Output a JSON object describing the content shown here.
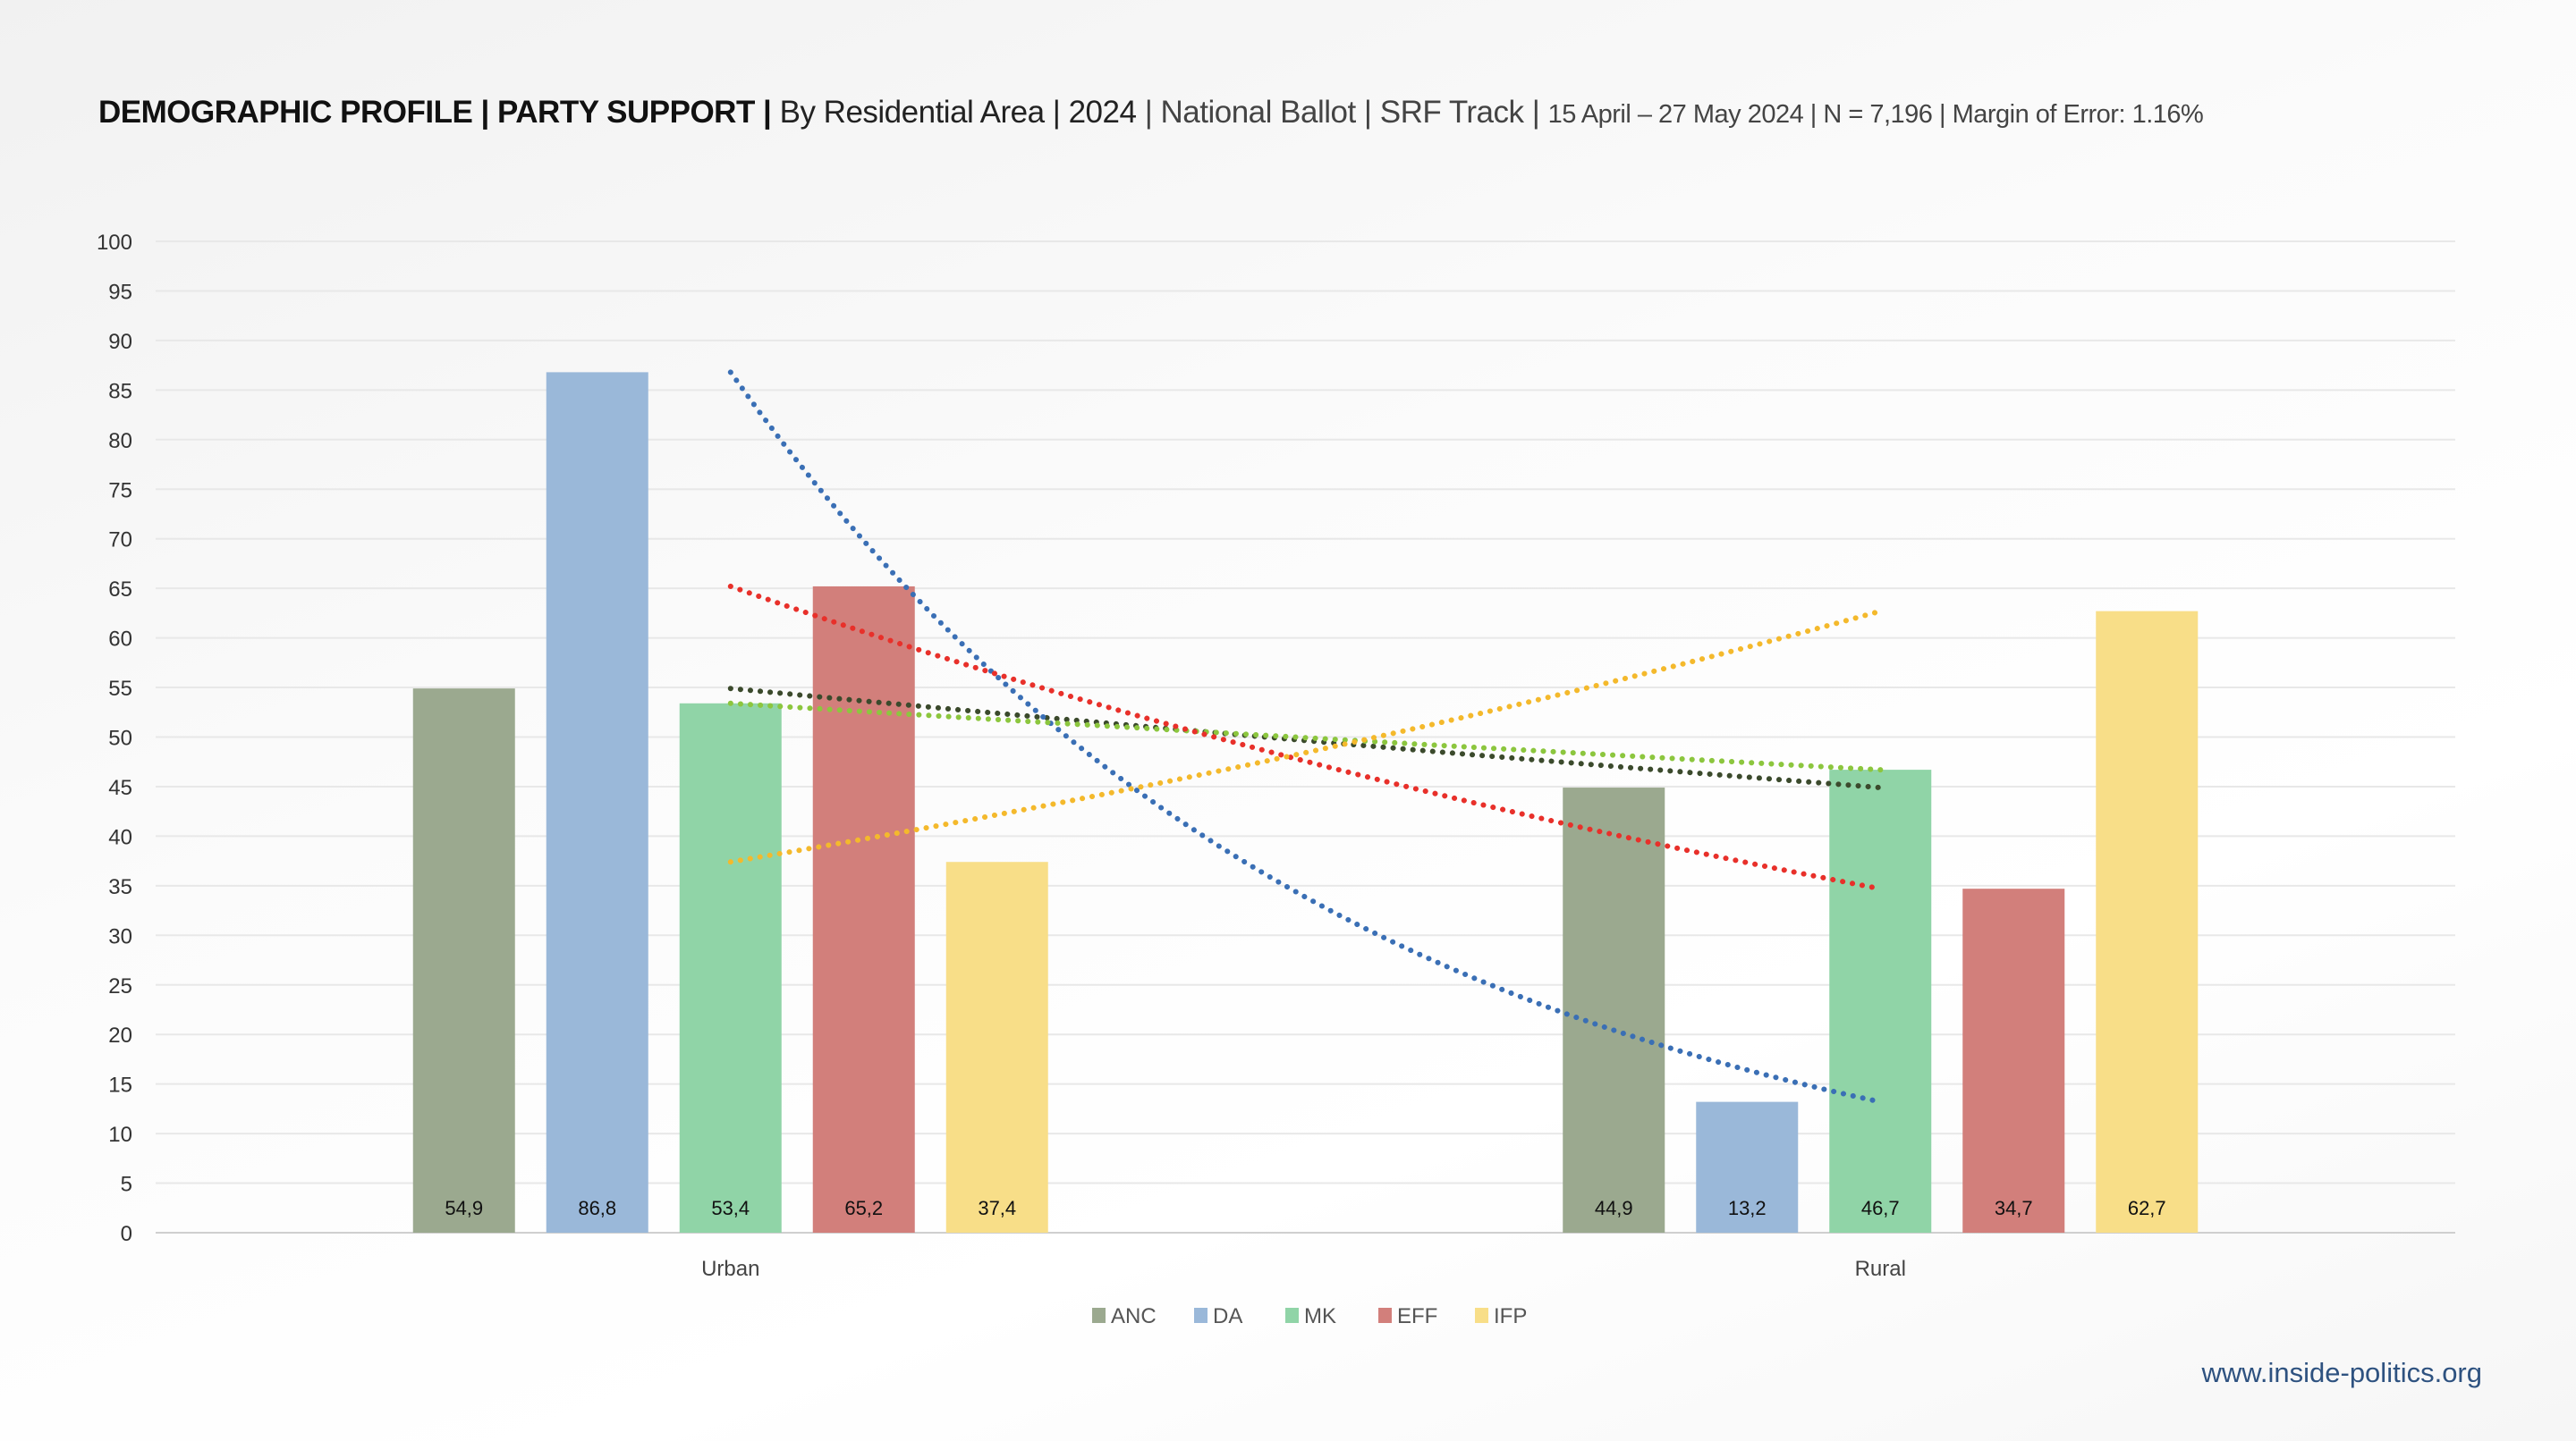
{
  "title": {
    "part1": "DEMOGRAPHIC PROFILE | PARTY SUPPORT |",
    "part2": "By Residential Area | 2024",
    "part3": "| National Ballot | SRF Track |",
    "part4": "15 April – 27 May 2024 | N = 7,196 | Margin of Error: 1.16%"
  },
  "footer": "www.inside-politics.org",
  "chart_data": {
    "type": "bar",
    "title": "DEMOGRAPHIC PROFILE | PARTY SUPPORT | By Residential Area | 2024 | National Ballot | SRF Track | 15 April – 27 May 2024 | N = 7,196 | Margin of Error: 1.16%",
    "categories": [
      "Urban",
      "Rural"
    ],
    "ylim": [
      0,
      100
    ],
    "yticks": [
      0,
      5,
      10,
      15,
      20,
      25,
      30,
      35,
      40,
      45,
      50,
      55,
      60,
      65,
      70,
      75,
      80,
      85,
      90,
      95,
      100
    ],
    "grid": true,
    "legend_position": "bottom",
    "series": [
      {
        "name": "ANC",
        "values": [
          54.9,
          44.9
        ],
        "labels": [
          "54,9",
          "44,9"
        ],
        "color": "#9ba98f",
        "trend_color": "#3b4a2c"
      },
      {
        "name": "DA",
        "values": [
          86.8,
          13.2
        ],
        "labels": [
          "86,8",
          "13,2"
        ],
        "color": "#9ab8d9",
        "trend_color": "#3a6fb5"
      },
      {
        "name": "MK",
        "values": [
          53.4,
          46.7
        ],
        "labels": [
          "53,4",
          "46,7"
        ],
        "color": "#90d4a7",
        "trend_color": "#8cc63e"
      },
      {
        "name": "EFF",
        "values": [
          65.2,
          34.7
        ],
        "labels": [
          "65,2",
          "34,7"
        ],
        "color": "#d27f7b",
        "trend_color": "#e8302a"
      },
      {
        "name": "IFP",
        "values": [
          37.4,
          62.7
        ],
        "labels": [
          "37,4",
          "62,7"
        ],
        "color": "#f8de88",
        "trend_color": "#f4b92c"
      }
    ],
    "trendlines": "exponential, dotted"
  }
}
